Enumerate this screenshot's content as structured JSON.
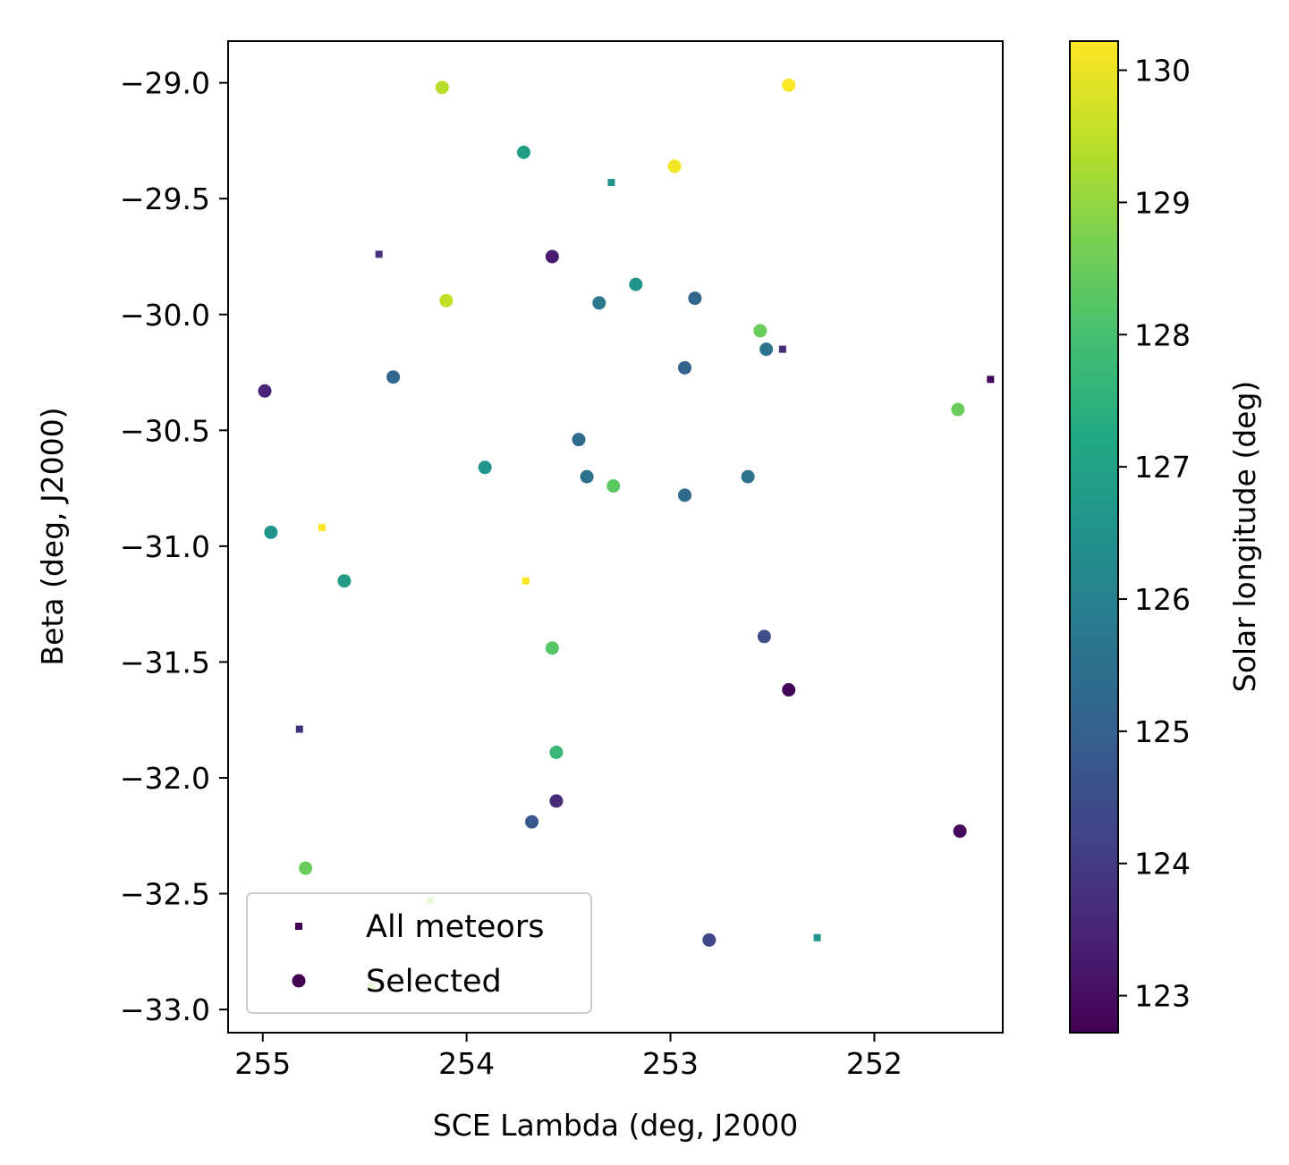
{
  "chart_data": {
    "type": "scatter",
    "xlabel": "SCE Lambda (deg, J2000",
    "ylabel": "Beta (deg, J2000)",
    "xlim": [
      255.17,
      251.37
    ],
    "ylim": [
      -33.1,
      -28.82
    ],
    "x_inverted": true,
    "xticks": [
      255,
      254,
      253,
      252
    ],
    "yticks": [
      -29.0,
      -29.5,
      -30.0,
      -30.5,
      -31.0,
      -31.5,
      -32.0,
      -32.5,
      -33.0
    ],
    "xtick_labels": [
      "255",
      "254",
      "253",
      "252"
    ],
    "ytick_labels": [
      "−29.0",
      "−29.5",
      "−30.0",
      "−30.5",
      "−31.0",
      "−31.5",
      "−32.0",
      "−32.5",
      "−33.0"
    ],
    "grid": false,
    "legend_position": "lower-left",
    "colorbar": {
      "label": "Solar longitude (deg)",
      "colormap": "viridis",
      "range": [
        122.72,
        130.22
      ],
      "ticks": [
        123,
        124,
        125,
        126,
        127,
        128,
        129,
        130
      ],
      "tick_labels": [
        "123",
        "124",
        "125",
        "126",
        "127",
        "128",
        "129",
        "130"
      ]
    },
    "series": [
      {
        "name": "All meteors",
        "marker": "square",
        "points": [
          {
            "x": 253.29,
            "y": -29.43,
            "c": 126.6
          },
          {
            "x": 254.43,
            "y": -29.74,
            "c": 123.8
          },
          {
            "x": 252.45,
            "y": -30.15,
            "c": 123.7
          },
          {
            "x": 251.43,
            "y": -30.28,
            "c": 122.8
          },
          {
            "x": 254.71,
            "y": -30.92,
            "c": 130.2
          },
          {
            "x": 253.71,
            "y": -31.15,
            "c": 130.2
          },
          {
            "x": 254.82,
            "y": -31.79,
            "c": 123.8
          },
          {
            "x": 254.18,
            "y": -32.53,
            "c": 129.0
          },
          {
            "x": 252.28,
            "y": -32.69,
            "c": 126.6
          },
          {
            "x": 254.47,
            "y": -32.9,
            "c": 129.0
          }
        ]
      },
      {
        "name": "Selected",
        "marker": "circle",
        "points": [
          {
            "x": 254.12,
            "y": -29.02,
            "c": 129.4
          },
          {
            "x": 252.42,
            "y": -29.01,
            "c": 130.2
          },
          {
            "x": 253.72,
            "y": -29.3,
            "c": 126.9
          },
          {
            "x": 252.98,
            "y": -29.36,
            "c": 130.1
          },
          {
            "x": 253.58,
            "y": -29.75,
            "c": 123.3
          },
          {
            "x": 253.17,
            "y": -29.87,
            "c": 126.6
          },
          {
            "x": 254.1,
            "y": -29.94,
            "c": 129.5
          },
          {
            "x": 253.35,
            "y": -29.95,
            "c": 125.7
          },
          {
            "x": 252.88,
            "y": -29.93,
            "c": 125.2
          },
          {
            "x": 252.56,
            "y": -30.07,
            "c": 128.5
          },
          {
            "x": 252.53,
            "y": -30.15,
            "c": 125.6
          },
          {
            "x": 252.93,
            "y": -30.23,
            "c": 125.1
          },
          {
            "x": 254.36,
            "y": -30.27,
            "c": 125.2
          },
          {
            "x": 254.99,
            "y": -30.33,
            "c": 123.5
          },
          {
            "x": 251.59,
            "y": -30.41,
            "c": 128.5
          },
          {
            "x": 253.45,
            "y": -30.54,
            "c": 125.3
          },
          {
            "x": 253.91,
            "y": -30.66,
            "c": 126.6
          },
          {
            "x": 253.41,
            "y": -30.7,
            "c": 125.5
          },
          {
            "x": 252.62,
            "y": -30.7,
            "c": 125.5
          },
          {
            "x": 253.28,
            "y": -30.74,
            "c": 128.3
          },
          {
            "x": 252.93,
            "y": -30.78,
            "c": 125.3
          },
          {
            "x": 254.96,
            "y": -30.94,
            "c": 126.6
          },
          {
            "x": 254.6,
            "y": -31.15,
            "c": 126.8
          },
          {
            "x": 253.58,
            "y": -31.44,
            "c": 128.2
          },
          {
            "x": 252.54,
            "y": -31.39,
            "c": 124.5
          },
          {
            "x": 252.42,
            "y": -31.62,
            "c": 122.8
          },
          {
            "x": 253.56,
            "y": -31.89,
            "c": 127.7
          },
          {
            "x": 253.56,
            "y": -32.1,
            "c": 123.6
          },
          {
            "x": 253.68,
            "y": -32.19,
            "c": 124.8
          },
          {
            "x": 251.58,
            "y": -32.23,
            "c": 122.9
          },
          {
            "x": 254.79,
            "y": -32.39,
            "c": 128.5
          },
          {
            "x": 252.81,
            "y": -32.7,
            "c": 124.3
          }
        ]
      }
    ]
  }
}
